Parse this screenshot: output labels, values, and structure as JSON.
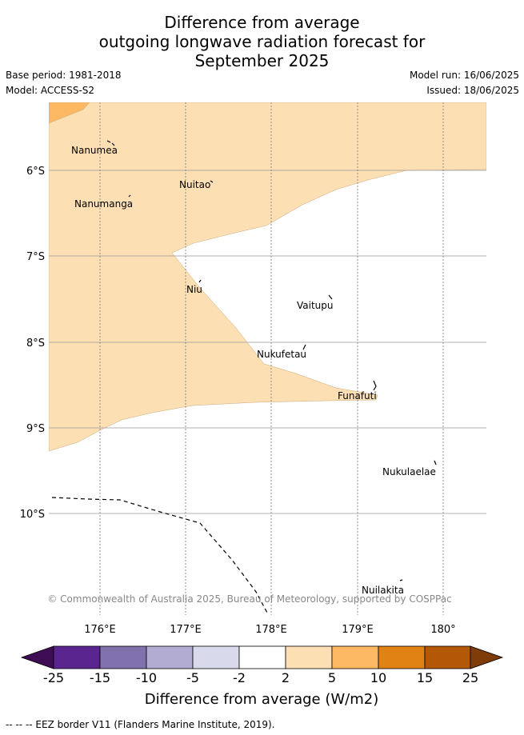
{
  "title": {
    "line1": "Difference from average",
    "line2": "outgoing longwave radiation forecast for",
    "line3": "September 2025"
  },
  "meta": {
    "base_period": "Base period: 1981-2018",
    "model": "Model: ACCESS-S2",
    "model_run": "Model run: 16/06/2025",
    "issued": "Issued: 18/06/2025"
  },
  "map": {
    "lat_labels": [
      "6°S",
      "7°S",
      "8°S",
      "9°S",
      "10°S"
    ],
    "lon_labels": [
      "176°E",
      "177°E",
      "178°E",
      "179°E",
      "180°"
    ],
    "places": [
      "Nanumea",
      "Nuitao",
      "Nanumanga",
      "Niu",
      "Vaitupu",
      "Nukufetau",
      "Funafuti",
      "Nukulaelae",
      "Nuilakita"
    ],
    "copyright": "© Commonwealth of Australia 2025, Bureau of Meteorology, supported by COSPPac",
    "fill_colors": {
      "band_2_5": "#fddfb4",
      "band_5_10": "#fdb863",
      "land": "#000000"
    }
  },
  "colorbar": {
    "ticks": [
      "-25",
      "-15",
      "-10",
      "-5",
      "-2",
      "2",
      "5",
      "10",
      "15",
      "25"
    ],
    "colors": [
      "#3f0d53",
      "#5b2590",
      "#8072ad",
      "#b2abd2",
      "#d8daeb",
      "#ffffff",
      "#fddfb4",
      "#fdb863",
      "#e08214",
      "#b35806",
      "#7f3b08"
    ],
    "label": "Difference from average (W/m2)"
  },
  "footer": "--  --  -- EEZ border V11 (Flanders Marine Institute, 2019)."
}
